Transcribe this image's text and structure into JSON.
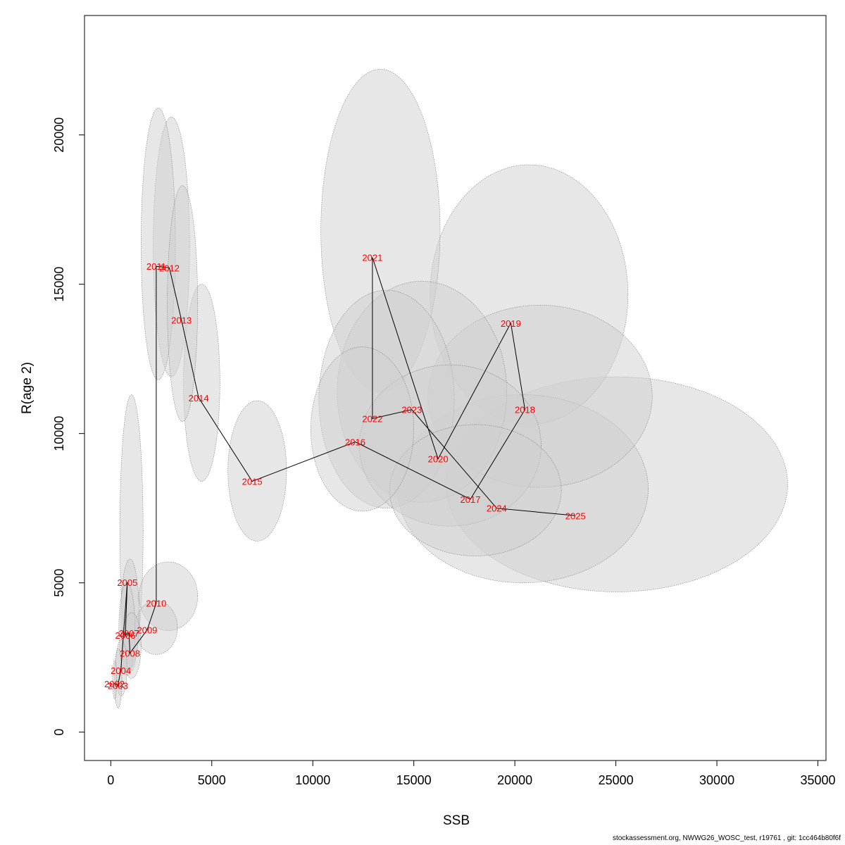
{
  "chart_data": {
    "type": "scatter",
    "xlabel": "SSB",
    "ylabel": "R(age 2)",
    "xlim": [
      -1300,
      35400
    ],
    "ylim": [
      -950,
      24000
    ],
    "xticks": [
      0,
      5000,
      10000,
      15000,
      20000,
      25000,
      30000,
      35000
    ],
    "yticks": [
      0,
      5000,
      10000,
      15000,
      20000
    ],
    "x_tick_labels": [
      "0",
      "5000",
      "10000",
      "15000",
      "20000",
      "25000",
      "30000",
      "35000"
    ],
    "y_tick_labels": [
      "0",
      "5000",
      "10000",
      "15000",
      "20000"
    ],
    "grid": false,
    "legend": "none",
    "label_color": "#ff0000",
    "line_color": "#000000",
    "ellipse_fill": "#cfcfcf",
    "points": [
      {
        "year": "2002",
        "label": "2002",
        "ssb": 180,
        "rec": 1620,
        "ssb_lo": 90,
        "ssb_hi": 300,
        "rec_lo": 1100,
        "rec_hi": 2400
      },
      {
        "year": "2003",
        "label": "2003",
        "ssb": 350,
        "rec": 1560,
        "ssb_lo": 180,
        "ssb_hi": 550,
        "rec_lo": 800,
        "rec_hi": 2800
      },
      {
        "year": "2004",
        "label": "2004",
        "ssb": 500,
        "rec": 2070,
        "ssb_lo": 250,
        "ssb_hi": 800,
        "rec_lo": 1200,
        "rec_hi": 3100
      },
      {
        "year": "2005",
        "label": "2005",
        "ssb": 820,
        "rec": 5020,
        "ssb_lo": 450,
        "ssb_hi": 1600,
        "rec_lo": 2200,
        "rec_hi": 11300
      },
      {
        "year": "2006",
        "label": "2006",
        "ssb": 720,
        "rec": 3250,
        "ssb_lo": 400,
        "ssb_hi": 1200,
        "rec_lo": 1900,
        "rec_hi": 5000
      },
      {
        "year": "2007",
        "label": "2007",
        "ssb": 900,
        "rec": 3320,
        "ssb_lo": 500,
        "ssb_hi": 1400,
        "rec_lo": 2000,
        "rec_hi": 5800
      },
      {
        "year": "2008",
        "label": "2008",
        "ssb": 950,
        "rec": 2650,
        "ssb_lo": 550,
        "ssb_hi": 1500,
        "rec_lo": 1800,
        "rec_hi": 4000
      },
      {
        "year": "2009",
        "label": "2009",
        "ssb": 1800,
        "rec": 3420,
        "ssb_lo": 1200,
        "ssb_hi": 3300,
        "rec_lo": 2600,
        "rec_hi": 4400
      },
      {
        "year": "2010",
        "label": "2010",
        "ssb": 2250,
        "rec": 4320,
        "ssb_lo": 1400,
        "ssb_hi": 4300,
        "rec_lo": 3400,
        "rec_hi": 5700
      },
      {
        "year": "2011",
        "label": "2011",
        "ssb": 2250,
        "rec": 15600,
        "ssb_lo": 1500,
        "ssb_hi": 3200,
        "rec_lo": 11800,
        "rec_hi": 20900
      },
      {
        "year": "2012",
        "label": "2012",
        "ssb": 2900,
        "rec": 15550,
        "ssb_lo": 2100,
        "ssb_hi": 3900,
        "rec_lo": 11900,
        "rec_hi": 20600
      },
      {
        "year": "2013",
        "label": "2013",
        "ssb": 3500,
        "rec": 13800,
        "ssb_lo": 2800,
        "ssb_hi": 4300,
        "rec_lo": 10400,
        "rec_hi": 18300
      },
      {
        "year": "2014",
        "label": "2014",
        "ssb": 4350,
        "rec": 11200,
        "ssb_lo": 3600,
        "ssb_hi": 5400,
        "rec_lo": 8400,
        "rec_hi": 15000
      },
      {
        "year": "2015",
        "label": "2015",
        "ssb": 7000,
        "rec": 8400,
        "ssb_lo": 5800,
        "ssb_hi": 8700,
        "rec_lo": 6400,
        "rec_hi": 11100
      },
      {
        "year": "2016",
        "label": "2016",
        "ssb": 12100,
        "rec": 9720,
        "ssb_lo": 9900,
        "ssb_hi": 15000,
        "rec_lo": 7400,
        "rec_hi": 12900
      },
      {
        "year": "2017",
        "label": "2017",
        "ssb": 17800,
        "rec": 7800,
        "ssb_lo": 13800,
        "ssb_hi": 22300,
        "rec_lo": 5900,
        "rec_hi": 10300
      },
      {
        "year": "2018",
        "label": "2018",
        "ssb": 20500,
        "rec": 10800,
        "ssb_lo": 15700,
        "ssb_hi": 26800,
        "rec_lo": 8200,
        "rec_hi": 14300
      },
      {
        "year": "2019",
        "label": "2019",
        "ssb": 19800,
        "rec": 13700,
        "ssb_lo": 15800,
        "ssb_hi": 25600,
        "rec_lo": 10300,
        "rec_hi": 19000
      },
      {
        "year": "2020",
        "label": "2020",
        "ssb": 16200,
        "rec": 9150,
        "ssb_lo": 12300,
        "ssb_hi": 21300,
        "rec_lo": 6900,
        "rec_hi": 12300
      },
      {
        "year": "2021",
        "label": "2021",
        "ssb": 12950,
        "rec": 15900,
        "ssb_lo": 10400,
        "ssb_hi": 16300,
        "rec_lo": 11400,
        "rec_hi": 22200
      },
      {
        "year": "2022",
        "label": "2022",
        "ssb": 12950,
        "rec": 10500,
        "ssb_lo": 10300,
        "ssb_hi": 17000,
        "rec_lo": 7500,
        "rec_hi": 14800
      },
      {
        "year": "2023",
        "label": "2023",
        "ssb": 14900,
        "rec": 10800,
        "ssb_lo": 11200,
        "ssb_hi": 19600,
        "rec_lo": 7700,
        "rec_hi": 15100
      },
      {
        "year": "2024",
        "label": "2024",
        "ssb": 19100,
        "rec": 7500,
        "ssb_lo": 14200,
        "ssb_hi": 26600,
        "rec_lo": 5000,
        "rec_hi": 11300
      },
      {
        "year": "2025",
        "label": "2025",
        "ssb": 23000,
        "rec": 7250,
        "ssb_lo": 16600,
        "ssb_hi": 33500,
        "rec_lo": 4700,
        "rec_hi": 11900
      }
    ]
  },
  "footer_text": "stockassessment.org, NWWG26_WOSC_test, r19761 , git: 1cc464b80f6f"
}
